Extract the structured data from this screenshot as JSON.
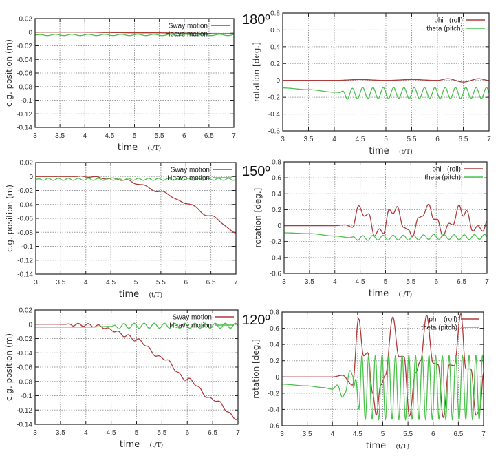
{
  "chart_data": [
    {
      "type": "line",
      "heading": "",
      "xlabel": "time",
      "xunit": "(t/T)",
      "ylabel": "c.g. position (m)",
      "xlim": [
        3,
        7
      ],
      "ylim": [
        -0.14,
        0.02
      ],
      "xticks": [
        "3",
        "3.5",
        "4",
        "4.5",
        "5",
        "5.5",
        "6",
        "6.5",
        "7"
      ],
      "yticks": [
        "0.02",
        "0",
        "-0.02",
        "-0.04",
        "-0.06",
        "-0.08",
        "-0.1",
        "-0.12",
        "-0.14"
      ],
      "grid": true,
      "legend": "top-right",
      "series": [
        {
          "name": "Sway motion",
          "color": "#b03a3a",
          "x": [
            3,
            3.5,
            4,
            4.5,
            5,
            5.5,
            6,
            6.5,
            7
          ],
          "y": [
            0,
            0,
            0,
            -0.0005,
            -0.001,
            -0.001,
            -0.0015,
            -0.002,
            -0.002
          ]
        },
        {
          "name": "Heave motion",
          "color": "#4cc24c",
          "x": [
            3,
            3.5,
            4,
            4.5,
            5,
            5.5,
            6,
            6.5,
            7
          ],
          "y": [
            -0.004,
            -0.004,
            -0.004,
            -0.004,
            -0.004,
            -0.004,
            -0.004,
            -0.004,
            -0.004
          ],
          "osc_amp": 0.001,
          "osc_start": 3,
          "osc_period": 0.33
        }
      ]
    },
    {
      "type": "line",
      "heading": "180º",
      "xlabel": "time",
      "xunit": "(t/T)",
      "ylabel": "rotation [deg.]",
      "xlim": [
        3,
        7
      ],
      "ylim": [
        -0.6,
        0.8
      ],
      "xticks": [
        "3",
        "3.5",
        "4",
        "4.5",
        "5",
        "5.5",
        "6",
        "6.5",
        "7"
      ],
      "yticks": [
        "0.8",
        "0.6",
        "0.4",
        "0.2",
        "0",
        "-0.2",
        "-0.4",
        "-0.6"
      ],
      "grid": true,
      "legend": "top-right",
      "series": [
        {
          "name": "phi   (roll)",
          "color": "#b03a3a",
          "x": [
            3,
            3.5,
            4,
            4.5,
            5,
            5.5,
            6,
            6.2,
            6.5,
            6.8,
            7
          ],
          "y": [
            0,
            0,
            0,
            0.01,
            0,
            0.01,
            0,
            0.02,
            -0.02,
            0.02,
            0
          ]
        },
        {
          "name": "theta (pitch)",
          "color": "#4cc24c",
          "x": [
            3,
            3.5,
            4,
            4.3,
            4.5,
            5,
            5.5,
            6,
            6.5,
            7
          ],
          "y": [
            -0.09,
            -0.11,
            -0.14,
            -0.16,
            -0.15,
            -0.15,
            -0.15,
            -0.15,
            -0.15,
            -0.15
          ],
          "osc_amp": 0.065,
          "osc_start": 4.1,
          "osc_period": 0.2
        }
      ]
    },
    {
      "type": "line",
      "heading": "",
      "xlabel": "time",
      "xunit": "(t/T)",
      "ylabel": "c.g. position (m)",
      "xlim": [
        3,
        7
      ],
      "ylim": [
        -0.14,
        0.02
      ],
      "xticks": [
        "3",
        "3.5",
        "4",
        "4.5",
        "5",
        "5.5",
        "6",
        "6.5",
        "7"
      ],
      "yticks": [
        "0.02",
        "0",
        "-0.02",
        "-0.04",
        "-0.06",
        "-0.08",
        "-0.1",
        "-0.12",
        "-0.14"
      ],
      "grid": true,
      "legend": "top-right",
      "series": [
        {
          "name": "Sway motion",
          "color": "#b03a3a",
          "x": [
            3,
            3.5,
            4,
            4.5,
            4.8,
            5,
            5.5,
            6,
            6.5,
            7
          ],
          "y": [
            0,
            0,
            0,
            -0.003,
            -0.005,
            -0.01,
            -0.022,
            -0.038,
            -0.057,
            -0.08
          ],
          "osc_amp": 0.001,
          "osc_start": 3.8,
          "osc_period": 0.33
        },
        {
          "name": "Heave motion",
          "color": "#4cc24c",
          "x": [
            3,
            4,
            5,
            6,
            7
          ],
          "y": [
            -0.004,
            -0.004,
            -0.004,
            -0.004,
            -0.004
          ],
          "osc_amp": 0.0015,
          "osc_start": 3,
          "osc_period": 0.2
        }
      ]
    },
    {
      "type": "line",
      "heading": "150º",
      "xlabel": "time",
      "xunit": "(t/T)",
      "ylabel": "rotation [deg.]",
      "xlim": [
        3,
        7
      ],
      "ylim": [
        -0.6,
        0.8
      ],
      "xticks": [
        "3",
        "3.5",
        "4",
        "4.5",
        "5",
        "5.5",
        "6",
        "6.5",
        "7"
      ],
      "yticks": [
        "0.8",
        "0.6",
        "0.4",
        "0.2",
        "0",
        "-0.2",
        "-0.4",
        "-0.6"
      ],
      "grid": true,
      "legend": "top-right",
      "series": [
        {
          "name": "phi   (roll)",
          "color": "#b03a3a",
          "x": [
            3,
            4,
            4.2,
            4.35,
            4.47,
            4.58,
            4.67,
            4.78,
            4.88,
            4.96,
            5.07,
            5.15,
            5.23,
            5.35,
            5.45,
            5.53,
            5.65,
            5.73,
            5.85,
            5.95,
            6.02,
            6.13,
            6.25,
            6.33,
            6.45,
            6.53,
            6.6,
            6.72,
            6.82,
            6.92,
            7
          ],
          "y": [
            0,
            0,
            0.01,
            -0.02,
            0.25,
            0.12,
            0.15,
            -0.13,
            -0.04,
            -0.1,
            0.2,
            0.15,
            0.24,
            -0.02,
            -0.05,
            -0.14,
            0.1,
            0.12,
            0.27,
            0.08,
            0.08,
            -0.13,
            0.03,
            0.01,
            0.26,
            0.12,
            0.19,
            -0.07,
            0,
            -0.07,
            0.05
          ]
        },
        {
          "name": "theta (pitch)",
          "color": "#4cc24c",
          "x": [
            3,
            3.5,
            4,
            4.3,
            4.5,
            5,
            5.5,
            6,
            6.5,
            7
          ],
          "y": [
            -0.09,
            -0.1,
            -0.13,
            -0.15,
            -0.155,
            -0.15,
            -0.15,
            -0.14,
            -0.145,
            -0.14
          ],
          "osc_amp": 0.03,
          "osc_start": 4.3,
          "osc_period": 0.2
        }
      ]
    },
    {
      "type": "line",
      "heading": "",
      "xlabel": "time",
      "xunit": "(t/T)",
      "ylabel": "c.g. position (m)",
      "xlim": [
        3,
        7
      ],
      "ylim": [
        -0.14,
        0.02
      ],
      "xticks": [
        "3",
        "3.5",
        "4",
        "4.5",
        "5",
        "5.5",
        "6",
        "6.5",
        "7"
      ],
      "yticks": [
        "0.02",
        "0",
        "-0.02",
        "-0.04",
        "-0.06",
        "-0.08",
        "-0.1",
        "-0.12",
        "-0.14"
      ],
      "grid": true,
      "legend": "top-right",
      "series": [
        {
          "name": "Sway motion",
          "color": "#b03a3a",
          "x": [
            3,
            3.5,
            4,
            4.3,
            4.5,
            4.8,
            5,
            5.5,
            6,
            6.5,
            7
          ],
          "y": [
            0,
            0,
            -0.001,
            -0.003,
            -0.008,
            -0.016,
            -0.022,
            -0.047,
            -0.077,
            -0.105,
            -0.132
          ],
          "osc_amp": 0.002,
          "osc_start": 3.6,
          "osc_period": 0.2
        },
        {
          "name": "Heave motion",
          "color": "#4cc24c",
          "x": [
            3,
            4,
            4.5,
            5,
            6,
            7
          ],
          "y": [
            -0.004,
            -0.004,
            -0.003,
            -0.002,
            -0.002,
            -0.002
          ],
          "osc_amp": 0.0035,
          "osc_start": 4.5,
          "osc_period": 0.2
        }
      ]
    },
    {
      "type": "line",
      "heading": "120º",
      "xlabel": "time",
      "xunit": "(t/T)",
      "ylabel": "rotation [deg.]",
      "xlim": [
        3,
        7
      ],
      "ylim": [
        -0.6,
        0.8
      ],
      "xticks": [
        "3",
        "3.5",
        "4",
        "4.5",
        "5",
        "5.5",
        "6",
        "6.5",
        "7"
      ],
      "yticks": [
        "0.8",
        "0.6",
        "0.4",
        "0.2",
        "0",
        "-0.2",
        "-0.4",
        "-0.6"
      ],
      "grid": true,
      "legend": "top-right",
      "series": [
        {
          "name": "phi   (roll)",
          "color": "#b03a3a",
          "x": [
            3,
            4,
            4.2,
            4.4,
            4.52,
            4.62,
            4.7,
            4.8,
            4.87,
            4.96,
            5.05,
            5.2,
            5.32,
            5.42,
            5.53,
            5.65,
            5.75,
            5.87,
            6.0,
            6.1,
            6.2,
            6.32,
            6.42,
            6.55,
            6.65,
            6.75,
            6.85,
            6.93,
            7
          ],
          "y": [
            0,
            0,
            0.02,
            -0.1,
            0.72,
            0.26,
            0.3,
            -0.2,
            -0.47,
            -0.1,
            0.02,
            0.74,
            0.25,
            0.25,
            -0.48,
            0.05,
            0.2,
            0.76,
            0.17,
            0.15,
            -0.5,
            0.15,
            0.14,
            0.78,
            0.1,
            0.1,
            -0.47,
            -0.4,
            0.05
          ]
        },
        {
          "name": "theta (pitch)",
          "color": "#4cc24c",
          "x": [
            3,
            3.5,
            3.8,
            4,
            4.1,
            4.2,
            4.25,
            4.35,
            4.42
          ],
          "y": [
            -0.09,
            -0.11,
            -0.13,
            -0.15,
            -0.1,
            -0.25,
            -0.2,
            0.08,
            0
          ],
          "osc_amp": 0.4,
          "osc_center": -0.13,
          "osc_start": 4.42,
          "osc_period": 0.133
        }
      ]
    }
  ]
}
